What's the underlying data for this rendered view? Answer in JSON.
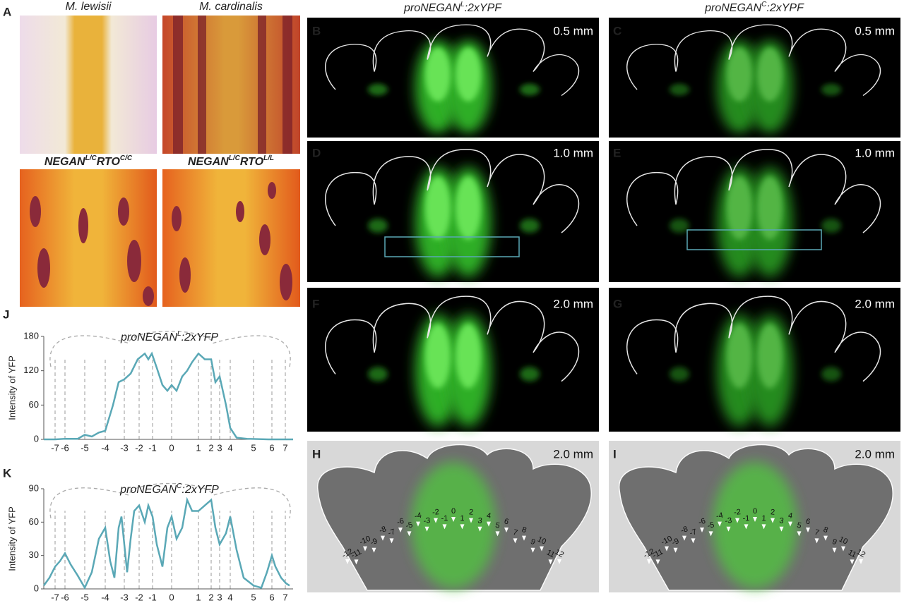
{
  "panel_labels": [
    "A",
    "B",
    "C",
    "D",
    "E",
    "F",
    "G",
    "H",
    "I",
    "J",
    "K"
  ],
  "species": [
    "M. lewisii",
    "M. cardinalis"
  ],
  "genotypes": [
    [
      "NEGAN",
      "L/C",
      "RTO",
      "C/C"
    ],
    [
      "NEGAN",
      "L/C",
      "RTO",
      "L/L"
    ]
  ],
  "column_headers": [
    [
      "proNEGAN",
      "L",
      ":2xYPF"
    ],
    [
      "proNEGAN",
      "C",
      ":2xYPF"
    ]
  ],
  "scale_labels": [
    "0.5 mm",
    "0.5 mm",
    "1.0 mm",
    "1.0 mm",
    "2.0 mm",
    "2.0 mm",
    "2.0 mm",
    "2.0 mm"
  ],
  "vein_labels": [
    [
      "-12",
      "-11",
      "-10",
      "-9",
      "-8",
      "-7",
      "-6",
      "-5",
      "-4",
      "-3",
      "-2",
      "-1",
      "0",
      "1",
      "2",
      "3",
      "4",
      "5",
      "6",
      "7",
      "8",
      "9",
      "10",
      "11",
      "12"
    ],
    [
      "-12",
      "-11",
      "-10",
      "-9",
      "-8",
      "-7",
      "-6",
      "-5",
      "-4",
      "-3",
      "-2",
      "-1",
      "0",
      "1",
      "2",
      "3",
      "4",
      "5",
      "6",
      "7",
      "8",
      "9",
      "10",
      "11",
      "12"
    ]
  ],
  "chart_data": [
    {
      "type": "line",
      "title": [
        "proNEGAN",
        "L",
        ":2xYFP"
      ],
      "y_label": "Intensity of YFP",
      "color": "#5aa8b6",
      "grid": true,
      "x": [
        0,
        16,
        30,
        48,
        58,
        68,
        78,
        87,
        98,
        106,
        114,
        123,
        133,
        143,
        148,
        153,
        160,
        168,
        175,
        181,
        188,
        196,
        203,
        210,
        219,
        228,
        237,
        243,
        249,
        258,
        264,
        273,
        288,
        318,
        353
      ],
      "values": [
        0,
        0,
        1,
        1,
        8,
        5,
        12,
        15,
        60,
        100,
        105,
        115,
        140,
        150,
        140,
        150,
        125,
        95,
        85,
        95,
        85,
        110,
        120,
        135,
        150,
        140,
        140,
        100,
        110,
        60,
        20,
        3,
        1,
        0,
        0
      ],
      "xlim": [
        0,
        353
      ],
      "ylim": [
        0,
        180
      ],
      "yticks": [
        0,
        60,
        120,
        180
      ],
      "xticks": [
        {
          "value": 16,
          "label": "-7"
        },
        {
          "value": 30,
          "label": "-6"
        },
        {
          "value": 58,
          "label": "-5"
        },
        {
          "value": 87,
          "label": "-4"
        },
        {
          "value": 114,
          "label": "-3"
        },
        {
          "value": 135,
          "label": "-2"
        },
        {
          "value": 154,
          "label": "-1"
        },
        {
          "value": 181,
          "label": "0"
        },
        {
          "value": 219,
          "label": "1"
        },
        {
          "value": 237,
          "label": "2"
        },
        {
          "value": 249,
          "label": "3"
        },
        {
          "value": 264,
          "label": "4"
        },
        {
          "value": 297,
          "label": "5"
        },
        {
          "value": 323,
          "label": "6"
        },
        {
          "value": 342,
          "label": "7"
        }
      ]
    },
    {
      "type": "line",
      "title": [
        "proNEGAN",
        "C",
        ":2xYFP"
      ],
      "y_label": "Intensity of YFP",
      "color": "#5aa8b6",
      "grid": true,
      "x": [
        0,
        8,
        16,
        23,
        30,
        38,
        48,
        58,
        68,
        78,
        87,
        94,
        100,
        106,
        110,
        114,
        118,
        123,
        128,
        135,
        143,
        148,
        154,
        160,
        168,
        175,
        181,
        188,
        196,
        203,
        210,
        219,
        228,
        237,
        243,
        249,
        258,
        264,
        273,
        283,
        297,
        308,
        316,
        323,
        328,
        336,
        343,
        348
      ],
      "values": [
        3,
        10,
        20,
        25,
        32,
        22,
        12,
        1,
        15,
        45,
        55,
        25,
        10,
        55,
        65,
        40,
        15,
        45,
        70,
        75,
        60,
        75,
        65,
        40,
        20,
        55,
        65,
        45,
        55,
        80,
        70,
        70,
        75,
        80,
        55,
        40,
        50,
        65,
        35,
        10,
        3,
        1,
        15,
        30,
        20,
        10,
        5,
        3
      ],
      "xlim": [
        0,
        353
      ],
      "ylim": [
        0,
        90
      ],
      "yticks": [
        0,
        30,
        60,
        90
      ],
      "xticks": [
        {
          "value": 16,
          "label": "-7"
        },
        {
          "value": 30,
          "label": "-6"
        },
        {
          "value": 58,
          "label": "-5"
        },
        {
          "value": 87,
          "label": "-4"
        },
        {
          "value": 114,
          "label": "-3"
        },
        {
          "value": 135,
          "label": "-2"
        },
        {
          "value": 154,
          "label": "-1"
        },
        {
          "value": 181,
          "label": "0"
        },
        {
          "value": 219,
          "label": "1"
        },
        {
          "value": 237,
          "label": "2"
        },
        {
          "value": 249,
          "label": "3"
        },
        {
          "value": 264,
          "label": "4"
        },
        {
          "value": 297,
          "label": "5"
        },
        {
          "value": 323,
          "label": "6"
        },
        {
          "value": 342,
          "label": "7"
        }
      ]
    }
  ]
}
